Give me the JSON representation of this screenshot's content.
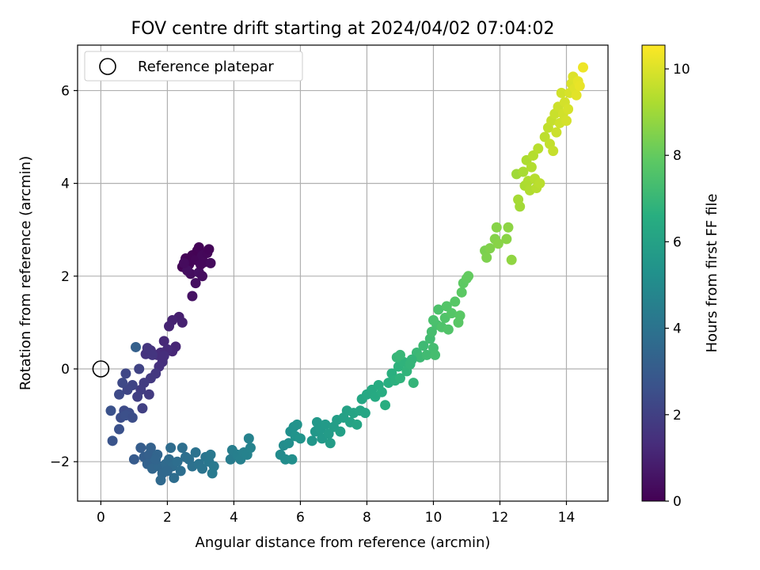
{
  "chart_data": {
    "type": "scatter",
    "title": "FOV centre drift starting at 2024/04/02 07:04:02",
    "xlabel": "Angular distance from reference (arcmin)",
    "ylabel": "Rotation from reference (arcmin)",
    "xlim": [
      -0.7,
      15.25
    ],
    "ylim": [
      -2.85,
      6.98
    ],
    "xticks": [
      0,
      2,
      4,
      6,
      8,
      10,
      12,
      14
    ],
    "yticks": [
      -2,
      0,
      2,
      4,
      6
    ],
    "grid": true,
    "legend": {
      "placement": "upper-left",
      "entries": [
        "Reference platepar"
      ]
    },
    "reference_point": {
      "x": 0.0,
      "y": 0.0,
      "label": "Reference platepar"
    },
    "colorbar": {
      "label": "Hours from first FF file",
      "colormap": "viridis",
      "range": [
        0,
        10.55
      ],
      "ticks": [
        0,
        2,
        4,
        6,
        8,
        10
      ]
    },
    "points": [
      {
        "x": 2.45,
        "y": 2.2,
        "t": 0.05
      },
      {
        "x": 2.55,
        "y": 2.38,
        "t": 0.1
      },
      {
        "x": 2.65,
        "y": 2.25,
        "t": 0.12
      },
      {
        "x": 2.75,
        "y": 2.45,
        "t": 0.08
      },
      {
        "x": 2.85,
        "y": 2.35,
        "t": 0.15
      },
      {
        "x": 2.9,
        "y": 2.55,
        "t": 0.05
      },
      {
        "x": 2.95,
        "y": 2.62,
        "t": 0.1
      },
      {
        "x": 3.05,
        "y": 2.45,
        "t": 0.2
      },
      {
        "x": 3.1,
        "y": 2.3,
        "t": 0.25
      },
      {
        "x": 3.2,
        "y": 2.5,
        "t": 0.18
      },
      {
        "x": 3.25,
        "y": 2.58,
        "t": 0.12
      },
      {
        "x": 3.3,
        "y": 2.28,
        "t": 0.3
      },
      {
        "x": 2.7,
        "y": 2.05,
        "t": 0.35
      },
      {
        "x": 2.85,
        "y": 1.85,
        "t": 0.4
      },
      {
        "x": 2.95,
        "y": 2.08,
        "t": 0.45
      },
      {
        "x": 3.05,
        "y": 2.0,
        "t": 0.38
      },
      {
        "x": 2.75,
        "y": 1.57,
        "t": 0.5
      },
      {
        "x": 2.6,
        "y": 2.12,
        "t": 0.42
      },
      {
        "x": 2.5,
        "y": 2.28,
        "t": 0.3
      },
      {
        "x": 3.0,
        "y": 2.25,
        "t": 0.22
      },
      {
        "x": 2.35,
        "y": 1.12,
        "t": 0.9
      },
      {
        "x": 2.45,
        "y": 1.0,
        "t": 0.95
      },
      {
        "x": 2.15,
        "y": 1.05,
        "t": 1.0
      },
      {
        "x": 2.05,
        "y": 0.92,
        "t": 1.05
      },
      {
        "x": 2.25,
        "y": 0.48,
        "t": 1.1
      },
      {
        "x": 2.15,
        "y": 0.38,
        "t": 1.15
      },
      {
        "x": 1.9,
        "y": 0.6,
        "t": 1.2
      },
      {
        "x": 2.0,
        "y": 0.42,
        "t": 1.25
      },
      {
        "x": 1.8,
        "y": 0.35,
        "t": 1.3
      },
      {
        "x": 1.7,
        "y": 0.3,
        "t": 1.35
      },
      {
        "x": 1.85,
        "y": 0.15,
        "t": 1.4
      },
      {
        "x": 1.75,
        "y": 0.05,
        "t": 1.45
      },
      {
        "x": 1.9,
        "y": 0.28,
        "t": 1.38
      },
      {
        "x": 1.5,
        "y": 0.4,
        "t": 1.5
      },
      {
        "x": 1.35,
        "y": 0.32,
        "t": 1.55
      },
      {
        "x": 1.4,
        "y": 0.45,
        "t": 1.6
      },
      {
        "x": 1.55,
        "y": 0.3,
        "t": 1.62
      },
      {
        "x": 1.65,
        "y": -0.1,
        "t": 1.7
      },
      {
        "x": 1.5,
        "y": -0.2,
        "t": 1.75
      },
      {
        "x": 1.45,
        "y": -0.55,
        "t": 1.8
      },
      {
        "x": 1.3,
        "y": -0.3,
        "t": 1.85
      },
      {
        "x": 1.2,
        "y": -0.45,
        "t": 1.9
      },
      {
        "x": 1.1,
        "y": -0.6,
        "t": 1.95
      },
      {
        "x": 1.25,
        "y": -0.85,
        "t": 2.0
      },
      {
        "x": 1.15,
        "y": -0.0,
        "t": 2.1
      },
      {
        "x": 0.95,
        "y": -0.35,
        "t": 2.15
      },
      {
        "x": 0.8,
        "y": -0.45,
        "t": 2.2
      },
      {
        "x": 0.75,
        "y": -0.1,
        "t": 2.25
      },
      {
        "x": 0.65,
        "y": -0.3,
        "t": 2.3
      },
      {
        "x": 0.55,
        "y": -0.55,
        "t": 2.35
      },
      {
        "x": 0.7,
        "y": -0.9,
        "t": 2.4
      },
      {
        "x": 0.85,
        "y": -0.95,
        "t": 2.45
      },
      {
        "x": 0.6,
        "y": -1.05,
        "t": 2.5
      },
      {
        "x": 0.75,
        "y": -1.0,
        "t": 2.55
      },
      {
        "x": 0.55,
        "y": -1.3,
        "t": 2.6
      },
      {
        "x": 0.3,
        "y": -0.9,
        "t": 2.65
      },
      {
        "x": 0.35,
        "y": -1.55,
        "t": 2.7
      },
      {
        "x": 1.05,
        "y": 0.47,
        "t": 3.2
      },
      {
        "x": 0.95,
        "y": -1.05,
        "t": 2.5
      },
      {
        "x": 1.0,
        "y": -1.95,
        "t": 3.0
      },
      {
        "x": 1.2,
        "y": -1.7,
        "t": 3.1
      },
      {
        "x": 1.3,
        "y": -1.9,
        "t": 3.15
      },
      {
        "x": 1.45,
        "y": -1.85,
        "t": 3.2
      },
      {
        "x": 1.5,
        "y": -1.7,
        "t": 3.25
      },
      {
        "x": 1.4,
        "y": -2.05,
        "t": 3.3
      },
      {
        "x": 1.6,
        "y": -2.0,
        "t": 3.35
      },
      {
        "x": 1.7,
        "y": -1.85,
        "t": 3.4
      },
      {
        "x": 1.55,
        "y": -2.15,
        "t": 3.45
      },
      {
        "x": 1.75,
        "y": -2.1,
        "t": 3.5
      },
      {
        "x": 1.85,
        "y": -2.25,
        "t": 3.55
      },
      {
        "x": 1.8,
        "y": -2.4,
        "t": 3.6
      },
      {
        "x": 1.95,
        "y": -2.05,
        "t": 3.62
      },
      {
        "x": 2.05,
        "y": -1.95,
        "t": 3.65
      },
      {
        "x": 2.1,
        "y": -1.7,
        "t": 3.7
      },
      {
        "x": 2.15,
        "y": -2.1,
        "t": 3.72
      },
      {
        "x": 2.2,
        "y": -2.35,
        "t": 3.75
      },
      {
        "x": 2.3,
        "y": -2.0,
        "t": 3.78
      },
      {
        "x": 2.4,
        "y": -2.2,
        "t": 3.8
      },
      {
        "x": 2.45,
        "y": -1.7,
        "t": 3.82
      },
      {
        "x": 2.55,
        "y": -1.9,
        "t": 3.85
      },
      {
        "x": 2.65,
        "y": -1.95,
        "t": 3.88
      },
      {
        "x": 2.75,
        "y": -2.1,
        "t": 3.9
      },
      {
        "x": 2.85,
        "y": -1.8,
        "t": 3.95
      },
      {
        "x": 2.95,
        "y": -2.05,
        "t": 4.0
      },
      {
        "x": 3.05,
        "y": -2.15,
        "t": 4.05
      },
      {
        "x": 3.15,
        "y": -1.9,
        "t": 4.1
      },
      {
        "x": 3.25,
        "y": -2.0,
        "t": 4.15
      },
      {
        "x": 3.3,
        "y": -1.85,
        "t": 4.2
      },
      {
        "x": 3.4,
        "y": -2.1,
        "t": 4.25
      },
      {
        "x": 3.35,
        "y": -2.25,
        "t": 4.28
      },
      {
        "x": 3.9,
        "y": -1.95,
        "t": 4.4
      },
      {
        "x": 3.95,
        "y": -1.75,
        "t": 4.45
      },
      {
        "x": 4.1,
        "y": -1.85,
        "t": 4.5
      },
      {
        "x": 4.2,
        "y": -1.95,
        "t": 4.55
      },
      {
        "x": 4.3,
        "y": -1.8,
        "t": 4.6
      },
      {
        "x": 4.4,
        "y": -1.85,
        "t": 4.62
      },
      {
        "x": 4.45,
        "y": -1.5,
        "t": 4.65
      },
      {
        "x": 4.5,
        "y": -1.7,
        "t": 4.68
      },
      {
        "x": 2.0,
        "y": -2.2,
        "t": 3.6
      },
      {
        "x": 1.65,
        "y": -1.95,
        "t": 3.4
      },
      {
        "x": 5.4,
        "y": -1.85,
        "t": 5.0
      },
      {
        "x": 5.5,
        "y": -1.65,
        "t": 5.05
      },
      {
        "x": 5.55,
        "y": -1.95,
        "t": 5.1
      },
      {
        "x": 5.65,
        "y": -1.6,
        "t": 5.15
      },
      {
        "x": 5.75,
        "y": -1.95,
        "t": 5.2
      },
      {
        "x": 5.7,
        "y": -1.35,
        "t": 5.25
      },
      {
        "x": 5.8,
        "y": -1.25,
        "t": 5.3
      },
      {
        "x": 5.85,
        "y": -1.45,
        "t": 5.35
      },
      {
        "x": 5.9,
        "y": -1.2,
        "t": 5.38
      },
      {
        "x": 6.0,
        "y": -1.5,
        "t": 5.4
      },
      {
        "x": 6.35,
        "y": -1.55,
        "t": 5.5
      },
      {
        "x": 6.45,
        "y": -1.35,
        "t": 5.55
      },
      {
        "x": 6.5,
        "y": -1.15,
        "t": 5.6
      },
      {
        "x": 6.6,
        "y": -1.3,
        "t": 5.62
      },
      {
        "x": 6.65,
        "y": -1.5,
        "t": 5.65
      },
      {
        "x": 6.75,
        "y": -1.2,
        "t": 5.7
      },
      {
        "x": 6.85,
        "y": -1.4,
        "t": 5.75
      },
      {
        "x": 6.9,
        "y": -1.6,
        "t": 5.78
      },
      {
        "x": 7.0,
        "y": -1.25,
        "t": 5.8
      },
      {
        "x": 7.1,
        "y": -1.1,
        "t": 5.85
      },
      {
        "x": 7.2,
        "y": -1.35,
        "t": 5.9
      },
      {
        "x": 7.3,
        "y": -1.05,
        "t": 5.95
      },
      {
        "x": 7.4,
        "y": -0.9,
        "t": 6.0
      },
      {
        "x": 7.5,
        "y": -1.15,
        "t": 6.05
      },
      {
        "x": 7.6,
        "y": -0.95,
        "t": 6.1
      },
      {
        "x": 7.7,
        "y": -1.2,
        "t": 6.12
      },
      {
        "x": 7.8,
        "y": -0.9,
        "t": 6.15
      },
      {
        "x": 7.95,
        "y": -0.95,
        "t": 6.2
      },
      {
        "x": 7.85,
        "y": -0.65,
        "t": 6.25
      },
      {
        "x": 8.0,
        "y": -0.55,
        "t": 6.3
      },
      {
        "x": 8.15,
        "y": -0.45,
        "t": 6.35
      },
      {
        "x": 8.25,
        "y": -0.6,
        "t": 6.4
      },
      {
        "x": 8.35,
        "y": -0.35,
        "t": 6.45
      },
      {
        "x": 8.45,
        "y": -0.5,
        "t": 6.5
      },
      {
        "x": 8.55,
        "y": -0.78,
        "t": 6.55
      },
      {
        "x": 8.65,
        "y": -0.3,
        "t": 6.6
      },
      {
        "x": 8.75,
        "y": -0.1,
        "t": 6.65
      },
      {
        "x": 8.85,
        "y": -0.25,
        "t": 6.7
      },
      {
        "x": 8.95,
        "y": 0.05,
        "t": 6.75
      },
      {
        "x": 9.0,
        "y": -0.2,
        "t": 6.78
      },
      {
        "x": 9.1,
        "y": 0.15,
        "t": 6.8
      },
      {
        "x": 9.2,
        "y": -0.05,
        "t": 6.85
      },
      {
        "x": 9.3,
        "y": 0.1,
        "t": 6.88
      },
      {
        "x": 9.4,
        "y": -0.3,
        "t": 6.9
      },
      {
        "x": 8.9,
        "y": 0.25,
        "t": 6.95
      },
      {
        "x": 9.0,
        "y": 0.3,
        "t": 7.0
      },
      {
        "x": 9.5,
        "y": 0.35,
        "t": 7.05
      },
      {
        "x": 9.6,
        "y": 0.25,
        "t": 7.1
      },
      {
        "x": 9.7,
        "y": 0.5,
        "t": 7.15
      },
      {
        "x": 9.8,
        "y": 0.3,
        "t": 7.2
      },
      {
        "x": 9.9,
        "y": 0.65,
        "t": 7.25
      },
      {
        "x": 10.0,
        "y": 0.45,
        "t": 7.3
      },
      {
        "x": 10.05,
        "y": 0.3,
        "t": 7.32
      },
      {
        "x": 9.95,
        "y": 0.8,
        "t": 7.35
      },
      {
        "x": 10.1,
        "y": 0.95,
        "t": 7.4
      },
      {
        "x": 10.0,
        "y": 1.05,
        "t": 7.45
      },
      {
        "x": 10.15,
        "y": 1.28,
        "t": 7.5
      },
      {
        "x": 10.25,
        "y": 0.9,
        "t": 7.55
      },
      {
        "x": 10.35,
        "y": 1.1,
        "t": 7.6
      },
      {
        "x": 10.45,
        "y": 0.85,
        "t": 7.62
      },
      {
        "x": 10.4,
        "y": 1.35,
        "t": 7.65
      },
      {
        "x": 10.55,
        "y": 1.2,
        "t": 7.7
      },
      {
        "x": 10.65,
        "y": 1.45,
        "t": 7.75
      },
      {
        "x": 10.75,
        "y": 1.0,
        "t": 7.78
      },
      {
        "x": 10.8,
        "y": 1.15,
        "t": 7.8
      },
      {
        "x": 10.85,
        "y": 1.65,
        "t": 7.85
      },
      {
        "x": 10.9,
        "y": 1.85,
        "t": 7.9
      },
      {
        "x": 11.0,
        "y": 1.95,
        "t": 7.95
      },
      {
        "x": 11.05,
        "y": 2.0,
        "t": 8.0
      },
      {
        "x": 9.35,
        "y": 0.2,
        "t": 6.9
      },
      {
        "x": 11.55,
        "y": 2.55,
        "t": 8.4
      },
      {
        "x": 11.6,
        "y": 2.4,
        "t": 8.45
      },
      {
        "x": 11.7,
        "y": 2.6,
        "t": 8.5
      },
      {
        "x": 11.85,
        "y": 2.8,
        "t": 8.55
      },
      {
        "x": 11.9,
        "y": 3.05,
        "t": 8.6
      },
      {
        "x": 11.95,
        "y": 2.7,
        "t": 8.62
      },
      {
        "x": 12.2,
        "y": 2.8,
        "t": 8.65
      },
      {
        "x": 12.25,
        "y": 3.05,
        "t": 8.7
      },
      {
        "x": 12.35,
        "y": 2.35,
        "t": 8.75
      },
      {
        "x": 12.5,
        "y": 4.2,
        "t": 9.0
      },
      {
        "x": 12.6,
        "y": 3.5,
        "t": 9.05
      },
      {
        "x": 12.55,
        "y": 3.65,
        "t": 9.1
      },
      {
        "x": 12.7,
        "y": 4.25,
        "t": 9.15
      },
      {
        "x": 12.75,
        "y": 3.95,
        "t": 9.2
      },
      {
        "x": 12.8,
        "y": 4.5,
        "t": 9.22
      },
      {
        "x": 12.85,
        "y": 4.05,
        "t": 9.25
      },
      {
        "x": 12.9,
        "y": 3.85,
        "t": 9.28
      },
      {
        "x": 12.95,
        "y": 4.35,
        "t": 9.3
      },
      {
        "x": 13.0,
        "y": 4.6,
        "t": 9.35
      },
      {
        "x": 13.05,
        "y": 4.1,
        "t": 9.38
      },
      {
        "x": 13.1,
        "y": 3.9,
        "t": 9.4
      },
      {
        "x": 13.15,
        "y": 4.75,
        "t": 9.42
      },
      {
        "x": 13.2,
        "y": 4.0,
        "t": 9.45
      },
      {
        "x": 13.35,
        "y": 5.0,
        "t": 9.5
      },
      {
        "x": 13.45,
        "y": 5.2,
        "t": 9.55
      },
      {
        "x": 13.5,
        "y": 4.85,
        "t": 9.6
      },
      {
        "x": 13.55,
        "y": 5.35,
        "t": 9.62
      },
      {
        "x": 13.6,
        "y": 4.7,
        "t": 9.65
      },
      {
        "x": 13.65,
        "y": 5.5,
        "t": 9.7
      },
      {
        "x": 13.7,
        "y": 5.1,
        "t": 9.72
      },
      {
        "x": 13.75,
        "y": 5.65,
        "t": 9.75
      },
      {
        "x": 13.8,
        "y": 5.3,
        "t": 9.78
      },
      {
        "x": 13.85,
        "y": 5.95,
        "t": 9.8
      },
      {
        "x": 13.9,
        "y": 5.5,
        "t": 9.82
      },
      {
        "x": 13.95,
        "y": 5.75,
        "t": 9.85
      },
      {
        "x": 14.0,
        "y": 5.35,
        "t": 9.88
      },
      {
        "x": 14.05,
        "y": 5.6,
        "t": 9.9
      },
      {
        "x": 14.1,
        "y": 5.95,
        "t": 9.92
      },
      {
        "x": 14.15,
        "y": 6.15,
        "t": 9.95
      },
      {
        "x": 14.2,
        "y": 6.3,
        "t": 10.0
      },
      {
        "x": 14.25,
        "y": 6.05,
        "t": 10.05
      },
      {
        "x": 14.3,
        "y": 5.9,
        "t": 10.1
      },
      {
        "x": 14.35,
        "y": 6.2,
        "t": 10.15
      },
      {
        "x": 14.4,
        "y": 6.1,
        "t": 10.2
      },
      {
        "x": 14.5,
        "y": 6.5,
        "t": 10.3
      }
    ]
  }
}
